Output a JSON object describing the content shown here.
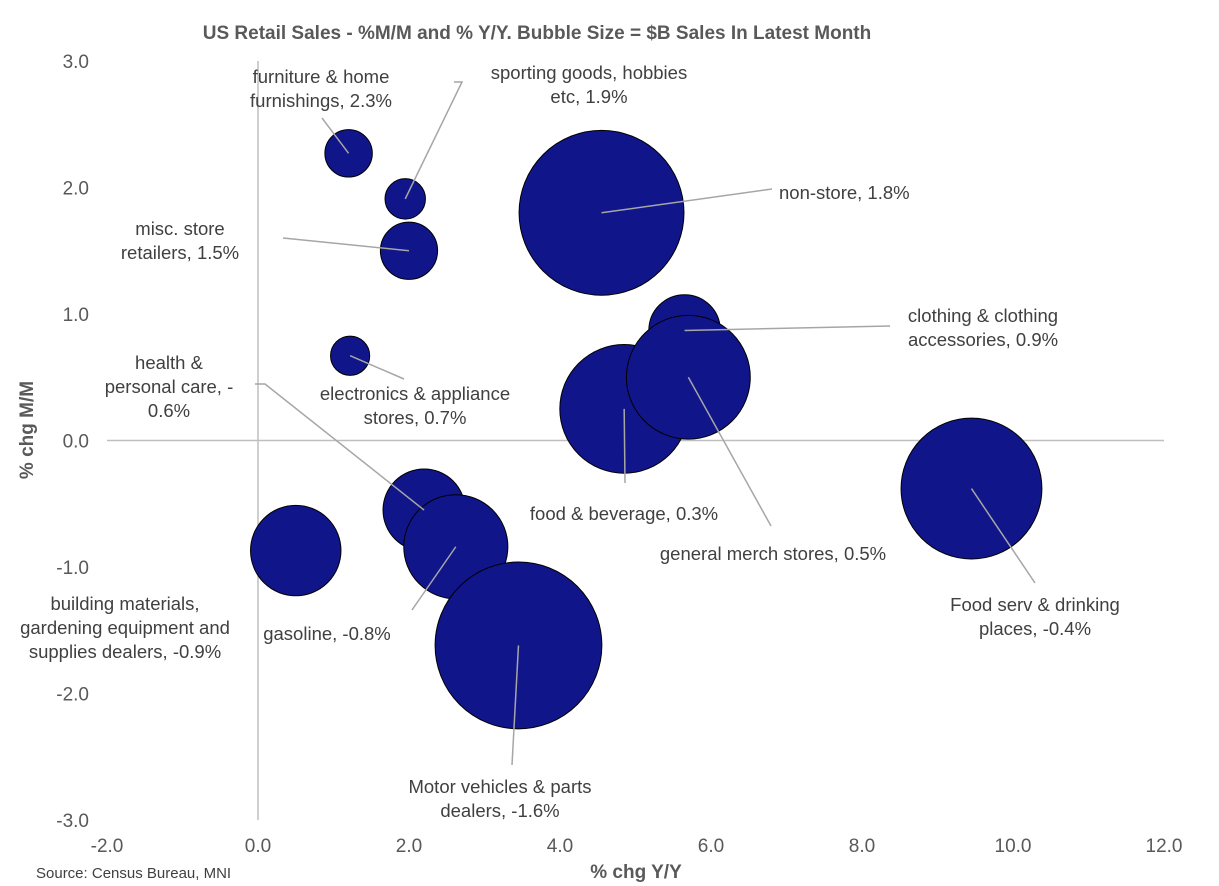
{
  "chart_data": {
    "type": "bubble",
    "title": "US Retail Sales - %M/M  and % Y/Y. Bubble Size = $B Sales In Latest Month",
    "xlabel": "% chg Y/Y",
    "ylabel": "% chg M/M",
    "xlim": [
      -2.0,
      12.0
    ],
    "ylim": [
      -3.0,
      3.0
    ],
    "x_ticks": [
      "-2.0",
      "0.0",
      "2.0",
      "4.0",
      "6.0",
      "8.0",
      "10.0",
      "12.0"
    ],
    "y_ticks": [
      "3.0",
      "2.0",
      "1.0",
      "0.0",
      "-1.0",
      "-2.0",
      "-3.0"
    ],
    "source": "Source: Census Bureau, MNI",
    "colors": {
      "bubble": "#10158a",
      "bubble_stroke": "#000000",
      "axis": "#bfbfbf",
      "leader": "#a6a6a6"
    },
    "points": [
      {
        "name": "furniture",
        "x": 1.2,
        "y": 2.27,
        "size": 11,
        "label_lines": [
          "furniture & home",
          "furnishings, 2.3%"
        ]
      },
      {
        "name": "sporting-goods",
        "x": 1.95,
        "y": 1.91,
        "size": 8,
        "label_lines": [
          "sporting goods, hobbies",
          "etc, 1.9%"
        ]
      },
      {
        "name": "misc-store",
        "x": 2.0,
        "y": 1.5,
        "size": 16,
        "label_lines": [
          "misc. store",
          "retailers, 1.5%"
        ]
      },
      {
        "name": "electronics",
        "x": 1.22,
        "y": 0.67,
        "size": 7.5,
        "label_lines": [
          "electronics & appliance",
          "stores, 0.7%"
        ]
      },
      {
        "name": "non-store",
        "x": 4.55,
        "y": 1.8,
        "size": 133,
        "label_lines": [
          "non-store, 1.8%"
        ]
      },
      {
        "name": "clothing",
        "x": 5.65,
        "y": 0.87,
        "size": 25,
        "label_lines": [
          "clothing & clothing",
          "accessories, 0.9%"
        ]
      },
      {
        "name": "food-beverage",
        "x": 4.85,
        "y": 0.25,
        "size": 81,
        "label_lines": [
          "food & beverage, 0.3%"
        ]
      },
      {
        "name": "general-merch",
        "x": 5.7,
        "y": 0.5,
        "size": 75,
        "label_lines": [
          "general merch stores, 0.5%"
        ]
      },
      {
        "name": "health",
        "x": 2.2,
        "y": -0.55,
        "size": 33,
        "label_lines": [
          "health &",
          "personal care, -",
          "0.6%"
        ]
      },
      {
        "name": "gasoline",
        "x": 2.62,
        "y": -0.84,
        "size": 53,
        "label_lines": [
          "gasoline, -0.8%"
        ]
      },
      {
        "name": "building",
        "x": 0.5,
        "y": -0.87,
        "size": 40,
        "label_lines": [
          "building materials,",
          "gardening equipment and",
          "supplies dealers, -0.9%"
        ]
      },
      {
        "name": "motor-vehicles",
        "x": 3.45,
        "y": -1.62,
        "size": 136,
        "label_lines": [
          "Motor vehicles & parts",
          "dealers, -1.6%"
        ]
      },
      {
        "name": "food-serv",
        "x": 9.45,
        "y": -0.38,
        "size": 97,
        "label_lines": [
          "Food serv & drinking",
          "places, -0.4%"
        ]
      }
    ]
  }
}
